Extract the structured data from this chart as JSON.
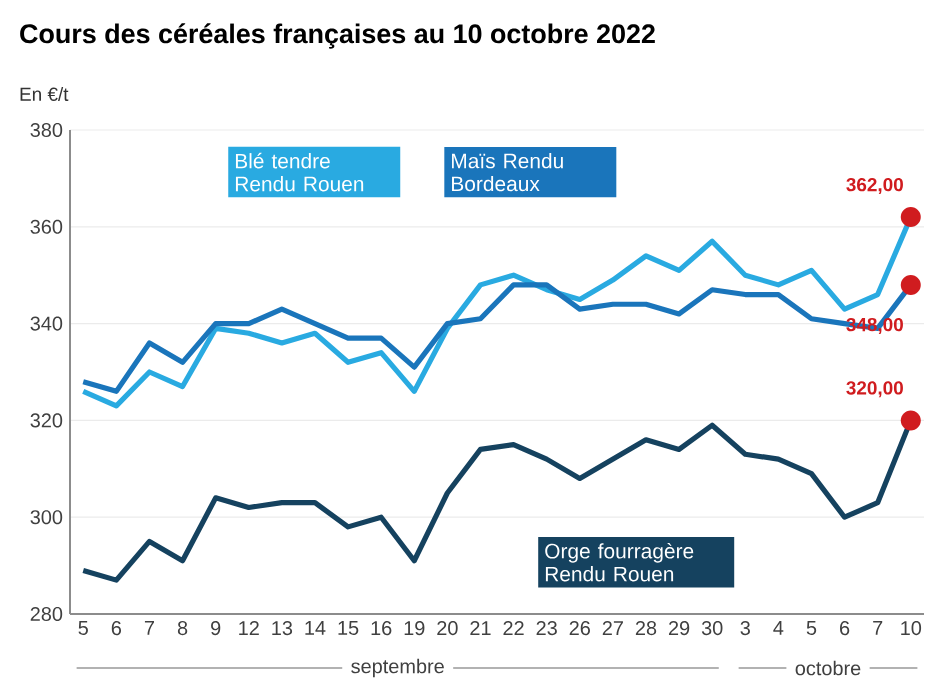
{
  "chart_data": {
    "type": "line",
    "title": "Cours des céréales françaises au 10 octobre 2022",
    "ylabel": "En €/t",
    "categories": [
      "5",
      "6",
      "7",
      "8",
      "9",
      "12",
      "13",
      "14",
      "15",
      "16",
      "19",
      "20",
      "21",
      "22",
      "23",
      "26",
      "27",
      "28",
      "29",
      "30",
      "3",
      "4",
      "5",
      "6",
      "7",
      "10"
    ],
    "series": [
      {
        "name": "Blé tendre Rendu Rouen",
        "color": "#29aae1",
        "values": [
          326,
          323,
          330,
          327,
          339,
          338,
          336,
          338,
          332,
          334,
          326,
          339,
          348,
          350,
          347,
          345,
          349,
          354,
          351,
          357,
          350,
          348,
          351,
          343,
          346,
          362
        ],
        "value_labels": [
          null,
          null,
          null,
          null,
          null,
          null,
          null,
          null,
          null,
          null,
          null,
          null,
          null,
          null,
          null,
          null,
          null,
          null,
          null,
          null,
          null,
          null,
          null,
          null,
          null,
          "362,00"
        ]
      },
      {
        "name": "Maïs Rendu Bordeaux",
        "color": "#1a75bb",
        "values": [
          328,
          326,
          336,
          332,
          340,
          340,
          343,
          340,
          337,
          337,
          331,
          340,
          341,
          348,
          348,
          343,
          344,
          344,
          342,
          347,
          346,
          346,
          341,
          340,
          339,
          348
        ],
        "value_labels": [
          null,
          null,
          null,
          null,
          null,
          null,
          null,
          null,
          null,
          null,
          null,
          null,
          null,
          null,
          null,
          null,
          null,
          null,
          null,
          null,
          null,
          null,
          null,
          null,
          null,
          "348,00"
        ]
      },
      {
        "name": "Orge fourragère Rendu Rouen",
        "color": "#15425f",
        "values": [
          289,
          287,
          295,
          291,
          304,
          302,
          303,
          303,
          298,
          300,
          291,
          305,
          314,
          315,
          312,
          308,
          312,
          316,
          314,
          319,
          313,
          312,
          309,
          300,
          303,
          320
        ],
        "value_labels": [
          null,
          null,
          null,
          null,
          null,
          null,
          null,
          null,
          null,
          null,
          null,
          null,
          null,
          null,
          null,
          null,
          null,
          null,
          null,
          null,
          null,
          null,
          null,
          null,
          null,
          "320,00"
        ]
      }
    ],
    "ylim": [
      280,
      380
    ],
    "yticks": [
      280,
      300,
      320,
      340,
      360,
      380
    ],
    "grid": "y",
    "line_style": "solid",
    "marker": "none",
    "annotations": [
      "septembre",
      "octobre"
    ]
  }
}
